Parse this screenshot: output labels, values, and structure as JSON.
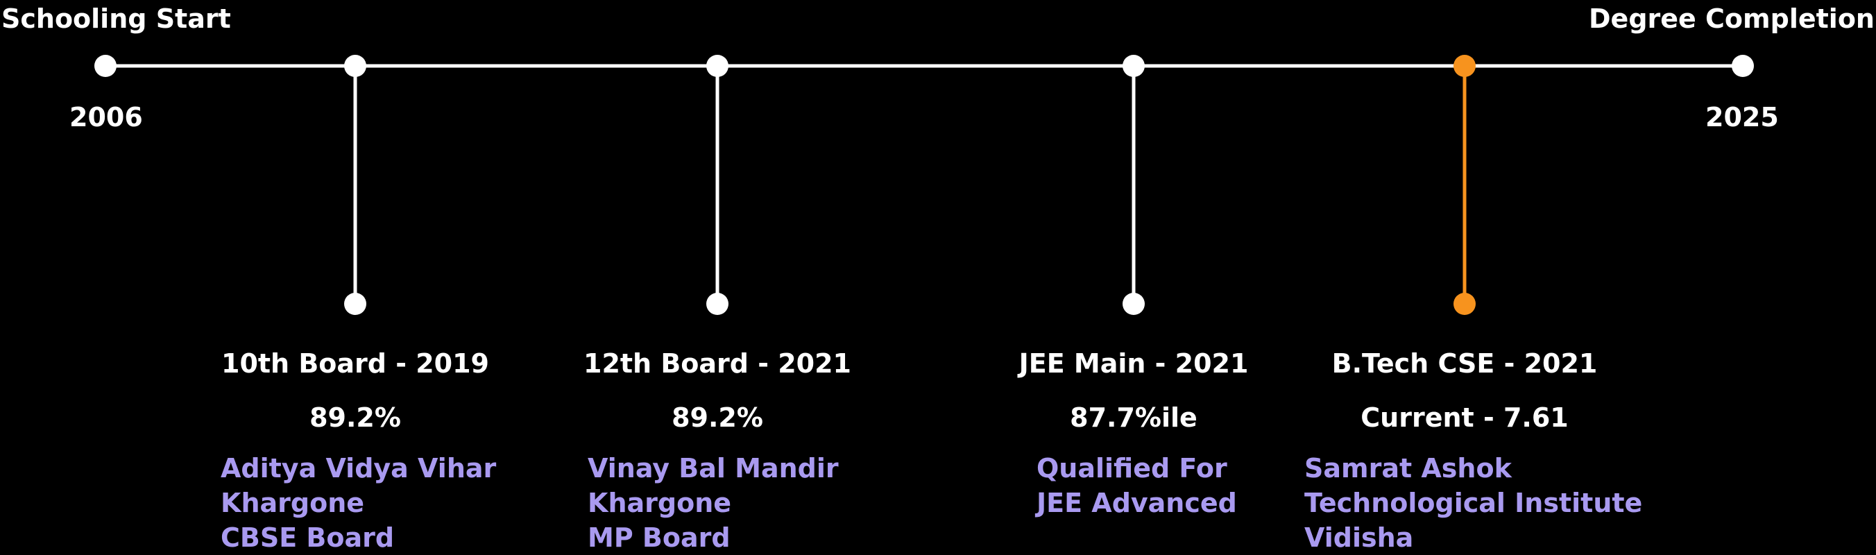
{
  "timeline": {
    "start_label": "Schooling Start",
    "end_label": "Degree Completion",
    "start_year": "2006",
    "end_year": "2025",
    "line_color": "#ffffff",
    "accent_color": "#f7931e",
    "detail_color": "#a99af0"
  },
  "milestones": [
    {
      "title": "10th Board - 2019",
      "score": "89.2%",
      "lines": [
        "Aditya Vidya Vihar",
        "Khargone",
        "CBSE Board"
      ],
      "highlight": false
    },
    {
      "title": "12th Board - 2021",
      "score": "89.2%",
      "lines": [
        "Vinay Bal Mandir",
        "Khargone",
        "MP Board"
      ],
      "highlight": false
    },
    {
      "title": "JEE Main - 2021",
      "score": "87.7%ile",
      "lines": [
        "Qualified For",
        "JEE Advanced"
      ],
      "highlight": false
    },
    {
      "title": "B.Tech CSE - 2021",
      "score": "Current - 7.61",
      "lines": [
        "Samrat Ashok",
        "Technological Institute",
        "Vidisha"
      ],
      "highlight": true
    }
  ]
}
